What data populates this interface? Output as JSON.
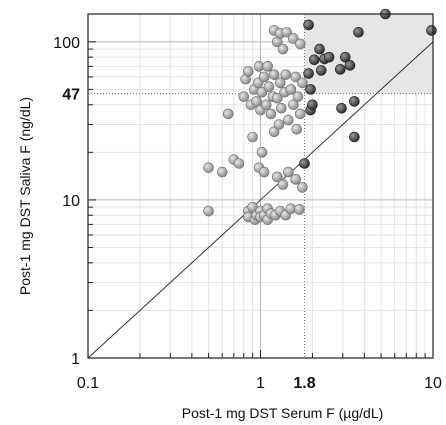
{
  "chart_data": {
    "type": "scatter",
    "title": "",
    "xlabel": "Post-1 mg DST Serum F (µg/dL)",
    "ylabel": "Post-1 mg DST Saliva F (ng/dL)",
    "x_scale": "log",
    "y_scale": "log",
    "xlim": [
      0.1,
      10
    ],
    "ylim": [
      1,
      150
    ],
    "grid": true,
    "x_ticks": [
      {
        "value": 0.1,
        "label": "0.1",
        "bold": false
      },
      {
        "value": 1,
        "label": "1",
        "bold": false
      },
      {
        "value": 1.8,
        "label": "1.8",
        "bold": true
      },
      {
        "value": 10,
        "label": "10",
        "bold": false
      }
    ],
    "y_ticks": [
      {
        "value": 1,
        "label": "1",
        "bold": false
      },
      {
        "value": 10,
        "label": "10",
        "bold": false
      },
      {
        "value": 47,
        "label": "47",
        "bold": true
      },
      {
        "value": 100,
        "label": "100",
        "bold": false
      }
    ],
    "thresholds": {
      "x": 1.8,
      "y": 47
    },
    "identity_line": true,
    "colors": {
      "below_x_threshold": "#8a8a8a",
      "above_x_threshold": "#2e2e2e",
      "shaded_region": "#e6e6e6",
      "line": "#333333"
    },
    "series": [
      {
        "points": [
          [
            0.5,
            8.5
          ],
          [
            0.5,
            16
          ],
          [
            0.6,
            15
          ],
          [
            0.65,
            35
          ],
          [
            0.7,
            18
          ],
          [
            0.75,
            17
          ],
          [
            0.8,
            45
          ],
          [
            0.82,
            58
          ],
          [
            0.85,
            65
          ],
          [
            0.85,
            8.5
          ],
          [
            0.85,
            7.8
          ],
          [
            0.88,
            40
          ],
          [
            0.9,
            25
          ],
          [
            0.9,
            9
          ],
          [
            0.92,
            50
          ],
          [
            0.93,
            7.5
          ],
          [
            0.95,
            42
          ],
          [
            0.95,
            8
          ],
          [
            0.97,
            55
          ],
          [
            0.98,
            70
          ],
          [
            0.98,
            16
          ],
          [
            1.0,
            37
          ],
          [
            1.0,
            8.5
          ],
          [
            1.0,
            7.8
          ],
          [
            1.02,
            48
          ],
          [
            1.02,
            20
          ],
          [
            1.05,
            60
          ],
          [
            1.05,
            15
          ],
          [
            1.05,
            8
          ],
          [
            1.08,
            40
          ],
          [
            1.1,
            70
          ],
          [
            1.1,
            8.8
          ],
          [
            1.1,
            7.5
          ],
          [
            1.12,
            52
          ],
          [
            1.15,
            35
          ],
          [
            1.15,
            8.2
          ],
          [
            1.18,
            45
          ],
          [
            1.2,
            118
          ],
          [
            1.2,
            62
          ],
          [
            1.2,
            27
          ],
          [
            1.22,
            8
          ],
          [
            1.25,
            100
          ],
          [
            1.25,
            44
          ],
          [
            1.25,
            14
          ],
          [
            1.28,
            30
          ],
          [
            1.3,
            113
          ],
          [
            1.3,
            55
          ],
          [
            1.3,
            8.5
          ],
          [
            1.32,
            38
          ],
          [
            1.35,
            90
          ],
          [
            1.35,
            12.5
          ],
          [
            1.38,
            48
          ],
          [
            1.4,
            62
          ],
          [
            1.4,
            8
          ],
          [
            1.42,
            115
          ],
          [
            1.45,
            32
          ],
          [
            1.45,
            15
          ],
          [
            1.5,
            50
          ],
          [
            1.5,
            8.8
          ],
          [
            1.55,
            105
          ],
          [
            1.55,
            40
          ],
          [
            1.6,
            60
          ],
          [
            1.6,
            13.5
          ],
          [
            1.62,
            28
          ],
          [
            1.65,
            45
          ],
          [
            1.68,
            8.7
          ],
          [
            1.7,
            97
          ],
          [
            1.7,
            35
          ],
          [
            1.75,
            55
          ],
          [
            1.75,
            12
          ]
        ]
      },
      {
        "points": [
          [
            1.8,
            17
          ],
          [
            1.9,
            128
          ],
          [
            1.9,
            63
          ],
          [
            1.95,
            50
          ],
          [
            1.95,
            37
          ],
          [
            2.0,
            40
          ],
          [
            2.05,
            77
          ],
          [
            2.2,
            90
          ],
          [
            2.25,
            66
          ],
          [
            2.35,
            78
          ],
          [
            2.5,
            80
          ],
          [
            2.9,
            67
          ],
          [
            2.95,
            38
          ],
          [
            3.1,
            80
          ],
          [
            3.3,
            71
          ],
          [
            3.5,
            42
          ],
          [
            3.5,
            25
          ],
          [
            3.7,
            115
          ],
          [
            5.3,
            155
          ],
          [
            9.8,
            118
          ]
        ]
      }
    ]
  }
}
